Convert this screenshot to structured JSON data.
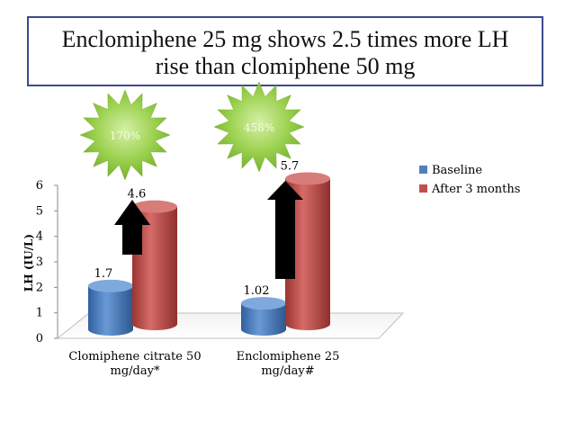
{
  "title": {
    "line1": "Enclomiphene 25 mg shows 2.5 times more LH",
    "line2": "rise than clomiphene 50 mg"
  },
  "callouts": [
    {
      "label": "170%"
    },
    {
      "label": "458%"
    }
  ],
  "chart_data": {
    "type": "bar",
    "title": "Enclomiphene 25 mg shows 2.5 times more LH rise than clomiphene 50 mg",
    "ylabel": "LH (IU/L)",
    "xlabel": "",
    "ylim": [
      0,
      6
    ],
    "yticks": [
      0,
      1,
      2,
      3,
      4,
      5,
      6
    ],
    "categories": [
      [
        "Clomiphene citrate 50",
        "mg/day*"
      ],
      [
        "Enclomiphene 25",
        "mg/day#"
      ]
    ],
    "series": [
      {
        "name": "Baseline",
        "color": "#4f81bd",
        "values": [
          1.7,
          1.02
        ],
        "labels": [
          "1.7",
          "1.02"
        ]
      },
      {
        "name": "After 3 months",
        "color": "#c0504d",
        "values": [
          4.6,
          5.7
        ],
        "labels": [
          "4.6",
          "5.7"
        ]
      }
    ],
    "legend": "top-right",
    "annotations": [
      "up-arrow",
      "up-arrow"
    ]
  },
  "colors": {
    "baseline": "#4f81bd",
    "after": "#c0504d",
    "star": "#8cc63f",
    "title_border": "#3a4a8c"
  }
}
